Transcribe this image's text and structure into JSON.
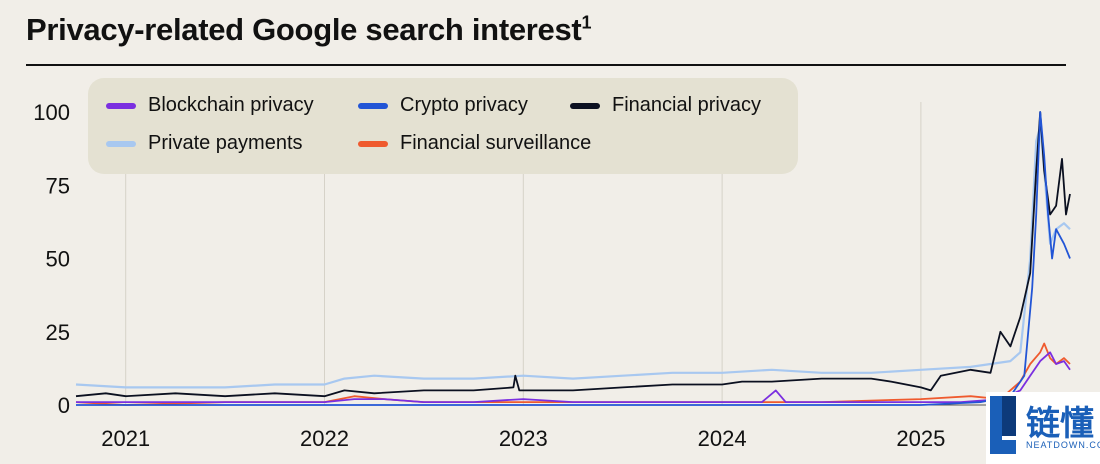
{
  "title": "Privacy-related Google search interest",
  "title_footnote": "1",
  "watermark": {
    "text": "链懂",
    "sub": "NEATDOWN.COM"
  },
  "chart_data": {
    "type": "line",
    "title": "Privacy-related Google search interest",
    "xlabel": "",
    "ylabel": "",
    "x_ticks": [
      "2021",
      "2022",
      "2023",
      "2024",
      "2025"
    ],
    "y_ticks": [
      0,
      25,
      50,
      75,
      100
    ],
    "ylim": [
      0,
      100
    ],
    "xlim": [
      2020.75,
      2025.75
    ],
    "grid": "vertical",
    "legend_position": "top-left",
    "series": [
      {
        "name": "Blockchain privacy",
        "color": "#7b2fe0",
        "points": [
          [
            2020.75,
            1
          ],
          [
            2021.0,
            1
          ],
          [
            2021.25,
            1
          ],
          [
            2021.5,
            1
          ],
          [
            2021.75,
            1
          ],
          [
            2022.0,
            1
          ],
          [
            2022.15,
            2
          ],
          [
            2022.3,
            2
          ],
          [
            2022.5,
            1
          ],
          [
            2022.75,
            1
          ],
          [
            2023.0,
            2
          ],
          [
            2023.25,
            1
          ],
          [
            2023.5,
            1
          ],
          [
            2023.75,
            1
          ],
          [
            2024.0,
            1
          ],
          [
            2024.2,
            1
          ],
          [
            2024.27,
            5
          ],
          [
            2024.32,
            1
          ],
          [
            2024.5,
            1
          ],
          [
            2024.75,
            1
          ],
          [
            2025.0,
            1
          ],
          [
            2025.2,
            1
          ],
          [
            2025.4,
            2
          ],
          [
            2025.5,
            5
          ],
          [
            2025.55,
            10
          ],
          [
            2025.6,
            15
          ],
          [
            2025.65,
            18
          ],
          [
            2025.68,
            14
          ],
          [
            2025.72,
            15
          ],
          [
            2025.75,
            12
          ]
        ]
      },
      {
        "name": "Crypto privacy",
        "color": "#2255d6",
        "points": [
          [
            2020.75,
            0
          ],
          [
            2021.0,
            0
          ],
          [
            2021.5,
            0
          ],
          [
            2022.0,
            0
          ],
          [
            2022.5,
            0
          ],
          [
            2023.0,
            0
          ],
          [
            2023.5,
            0
          ],
          [
            2024.0,
            0
          ],
          [
            2024.5,
            0
          ],
          [
            2025.0,
            0
          ],
          [
            2025.3,
            1
          ],
          [
            2025.45,
            3
          ],
          [
            2025.52,
            10
          ],
          [
            2025.56,
            40
          ],
          [
            2025.58,
            65
          ],
          [
            2025.6,
            100
          ],
          [
            2025.62,
            85
          ],
          [
            2025.64,
            65
          ],
          [
            2025.66,
            50
          ],
          [
            2025.68,
            60
          ],
          [
            2025.72,
            55
          ],
          [
            2025.75,
            50
          ]
        ]
      },
      {
        "name": "Financial privacy",
        "color": "#0b1020",
        "points": [
          [
            2020.75,
            3
          ],
          [
            2020.9,
            4
          ],
          [
            2021.0,
            3
          ],
          [
            2021.25,
            4
          ],
          [
            2021.5,
            3
          ],
          [
            2021.75,
            4
          ],
          [
            2022.0,
            3
          ],
          [
            2022.1,
            5
          ],
          [
            2022.25,
            4
          ],
          [
            2022.5,
            5
          ],
          [
            2022.75,
            5
          ],
          [
            2022.95,
            6
          ],
          [
            2022.96,
            10
          ],
          [
            2022.98,
            5
          ],
          [
            2023.25,
            5
          ],
          [
            2023.5,
            6
          ],
          [
            2023.75,
            7
          ],
          [
            2024.0,
            7
          ],
          [
            2024.1,
            8
          ],
          [
            2024.25,
            8
          ],
          [
            2024.5,
            9
          ],
          [
            2024.75,
            9
          ],
          [
            2024.85,
            8
          ],
          [
            2025.0,
            6
          ],
          [
            2025.05,
            5
          ],
          [
            2025.1,
            10
          ],
          [
            2025.25,
            12
          ],
          [
            2025.35,
            11
          ],
          [
            2025.4,
            25
          ],
          [
            2025.45,
            20
          ],
          [
            2025.5,
            30
          ],
          [
            2025.55,
            45
          ],
          [
            2025.58,
            80
          ],
          [
            2025.6,
            100
          ],
          [
            2025.62,
            80
          ],
          [
            2025.65,
            65
          ],
          [
            2025.68,
            68
          ],
          [
            2025.71,
            84
          ],
          [
            2025.73,
            65
          ],
          [
            2025.75,
            72
          ]
        ]
      },
      {
        "name": "Private payments",
        "color": "#a8c8f0",
        "points": [
          [
            2020.75,
            7
          ],
          [
            2021.0,
            6
          ],
          [
            2021.25,
            6
          ],
          [
            2021.5,
            6
          ],
          [
            2021.75,
            7
          ],
          [
            2022.0,
            7
          ],
          [
            2022.1,
            9
          ],
          [
            2022.25,
            10
          ],
          [
            2022.5,
            9
          ],
          [
            2022.75,
            9
          ],
          [
            2023.0,
            10
          ],
          [
            2023.25,
            9
          ],
          [
            2023.5,
            10
          ],
          [
            2023.75,
            11
          ],
          [
            2024.0,
            11
          ],
          [
            2024.25,
            12
          ],
          [
            2024.5,
            11
          ],
          [
            2024.75,
            11
          ],
          [
            2025.0,
            12
          ],
          [
            2025.25,
            13
          ],
          [
            2025.45,
            15
          ],
          [
            2025.5,
            18
          ],
          [
            2025.55,
            50
          ],
          [
            2025.58,
            90
          ],
          [
            2025.6,
            95
          ],
          [
            2025.62,
            80
          ],
          [
            2025.65,
            55
          ],
          [
            2025.68,
            60
          ],
          [
            2025.72,
            62
          ],
          [
            2025.75,
            60
          ]
        ]
      },
      {
        "name": "Financial surveillance",
        "color": "#ef5a2e",
        "points": [
          [
            2020.75,
            1
          ],
          [
            2021.0,
            0
          ],
          [
            2021.5,
            1
          ],
          [
            2022.0,
            1
          ],
          [
            2022.15,
            3
          ],
          [
            2022.3,
            2
          ],
          [
            2022.5,
            1
          ],
          [
            2023.0,
            1
          ],
          [
            2023.5,
            1
          ],
          [
            2024.0,
            1
          ],
          [
            2024.5,
            1
          ],
          [
            2025.0,
            2
          ],
          [
            2025.25,
            3
          ],
          [
            2025.4,
            2
          ],
          [
            2025.5,
            8
          ],
          [
            2025.55,
            14
          ],
          [
            2025.6,
            18
          ],
          [
            2025.62,
            21
          ],
          [
            2025.65,
            16
          ],
          [
            2025.68,
            14
          ],
          [
            2025.72,
            16
          ],
          [
            2025.75,
            14
          ]
        ]
      }
    ]
  }
}
